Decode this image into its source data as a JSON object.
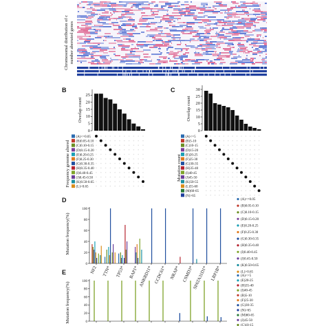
{
  "panel_letters": {
    "b": "B",
    "c": "C",
    "d": "D",
    "e": "E"
  },
  "colors": {
    "heatmap_amp": "#d9467a",
    "heatmap_del": "#2f53c9",
    "track": "#1f3f9e"
  },
  "chart_data": [
    {
      "id": "A",
      "type": "heatmap",
      "ylabel": "Chromosomal distribution of c... number aberrated genes",
      "ylabel_lines": [
        "Chromosomal distribution of c",
        "number aberrated genes"
      ]
    },
    {
      "id": "B",
      "type": "bar",
      "ylabel": "Overlap count",
      "yticks": [
        0,
        5,
        10,
        15,
        20,
        25
      ],
      "ylim": [
        0,
        29
      ],
      "values": [
        26,
        26,
        23,
        22,
        19,
        15,
        12,
        8,
        5,
        3,
        1
      ],
      "matrix_ylabel": "Frequency genome altered",
      "legend": [
        "(A)<=0.05",
        "(B)0.05-0.10",
        "(C)0.10-0.15",
        "(D)0.15-0.20",
        "(E)0.20-0.25",
        "(F)0.25-0.30",
        "(G)0.30-0.35",
        "(H)0.35-0.40",
        "(I)0.40-0.45",
        "(J)0.45-0.50",
        "(K)0.50-0.65",
        "(L)>0.65"
      ],
      "legend_colors": [
        "#2b6cb0",
        "#c0392b",
        "#6b8e23",
        "#7b3f99",
        "#1a9fb5",
        "#e07b1f",
        "#1f4e9e",
        "#b5232f",
        "#7fa32a",
        "#6a3d9a",
        "#1a8fa0",
        "#d98c1a"
      ],
      "dots": [
        [
          1,
          0
        ],
        [
          2,
          1
        ],
        [
          3,
          2
        ],
        [
          4,
          3
        ],
        [
          5,
          4
        ],
        [
          6,
          5
        ],
        [
          7,
          6
        ],
        [
          8,
          7
        ],
        [
          9,
          8
        ],
        [
          10,
          9
        ],
        [
          11,
          10
        ]
      ]
    },
    {
      "id": "C",
      "type": "bar",
      "ylabel": "Overlap count",
      "yticks": [
        0,
        5,
        10,
        15,
        20,
        25,
        30
      ],
      "ylim": [
        0,
        33
      ],
      "values": [
        29,
        27,
        20,
        19,
        18,
        17,
        15,
        11,
        8,
        5,
        3,
        2,
        1
      ],
      "matrix_ylabel": "Mutation count",
      "legend": [
        "(A)<=5",
        "(B)5-10",
        "(C)10-15",
        "(D)15-20",
        "(E)20-25",
        "(F)25-30",
        "(G)30-35",
        "(H)35-40",
        "(I)40-45",
        "(J)45-50",
        "(K)50-55",
        "(L)55-60",
        "(M)60-65",
        "(N)>65"
      ],
      "legend_colors": [
        "#2b6cb0",
        "#c0392b",
        "#6b8e23",
        "#7b3f99",
        "#1a9fb5",
        "#e07b1f",
        "#1f4e9e",
        "#b5232f",
        "#7fa32a",
        "#6a3d9a",
        "#1a8fa0",
        "#d98c1a",
        "#2a7a3a",
        "#1f3f9e"
      ],
      "dots": [
        [
          1,
          0
        ],
        [
          2,
          1
        ],
        [
          3,
          2
        ],
        [
          4,
          3
        ],
        [
          5,
          4
        ],
        [
          6,
          5
        ],
        [
          7,
          6
        ],
        [
          8,
          7
        ],
        [
          9,
          8
        ],
        [
          10,
          9
        ],
        [
          11,
          10
        ],
        [
          12,
          11
        ],
        [
          13,
          12
        ]
      ]
    },
    {
      "id": "D",
      "type": "bar",
      "ylabel": "Mutation frequency(%)",
      "yticks": [
        0,
        20,
        40,
        60,
        80,
        100
      ],
      "ylim": [
        0,
        100
      ],
      "categories": [
        "NF2",
        "TTN*",
        "TP53*",
        "BAP1*",
        "ANKRD11*",
        "CCDC61*",
        "NRAP*",
        "CSMD3*",
        "SPATA31D1*",
        "LRP1B*"
      ],
      "legend": [
        "(A)<=0.05",
        "(B)0.05-0.10",
        "(C)0.10-0.15",
        "(D)0.15-0.20",
        "(E)0.20-0.25",
        "(F)0.25-0.30",
        "(G)0.30-0.35",
        "(H)0.35-0.40",
        "(I)0.40-0.45",
        "(J)0.45-0.50",
        "(K)0.50-0.65",
        "(L)>0.65"
      ],
      "legend_colors": [
        "#2b6cb0",
        "#c0392b",
        "#6b8e23",
        "#7b3f99",
        "#1a9fb5",
        "#e07b1f",
        "#1f4e9e",
        "#b5232f",
        "#7fa32a",
        "#6a3d9a",
        "#1a8fa0",
        "#d98c1a"
      ],
      "series_values": [
        [
          0,
          12,
          18,
          0,
          0,
          0,
          0,
          0,
          0,
          0
        ],
        [
          35,
          0,
          0,
          0,
          0,
          0,
          0,
          0,
          0,
          0
        ],
        [
          30,
          25,
          20,
          0,
          0,
          0,
          0,
          0,
          0,
          0
        ],
        [
          25,
          0,
          10,
          30,
          0,
          0,
          0,
          0,
          0,
          0
        ],
        [
          40,
          30,
          15,
          20,
          0,
          0,
          0,
          0,
          0,
          0
        ],
        [
          20,
          15,
          0,
          35,
          0,
          0,
          0,
          0,
          0,
          0
        ],
        [
          10,
          100,
          10,
          10,
          100,
          100,
          0,
          100,
          100,
          100
        ],
        [
          0,
          0,
          70,
          0,
          0,
          0,
          12,
          0,
          0,
          0
        ],
        [
          18,
          20,
          25,
          45,
          0,
          0,
          0,
          0,
          0,
          0
        ],
        [
          0,
          35,
          40,
          0,
          0,
          0,
          0,
          0,
          0,
          0
        ],
        [
          15,
          0,
          0,
          25,
          0,
          0,
          0,
          8,
          0,
          0
        ],
        [
          32,
          20,
          0,
          0,
          0,
          0,
          0,
          0,
          0,
          0
        ]
      ]
    },
    {
      "id": "E",
      "type": "bar",
      "ylabel": "Mutation frequency(%)",
      "yticks": [
        0,
        20,
        40,
        60,
        80,
        100
      ],
      "ylim": [
        0,
        100
      ],
      "categories": [
        "",
        "",
        "",
        "",
        "",
        "",
        "",
        "",
        "",
        ""
      ],
      "legend": [
        "(A)<=5",
        "(E)20-25",
        "(H)35-40",
        "(I)40-45",
        "(B)5-10",
        "(F)25-30",
        "(G)30-35",
        "(N)>65",
        "(M)60-65",
        "(J)45-50",
        "(C)10-15"
      ],
      "legend_colors": [
        "#2b6cb0",
        "#1a9fb5",
        "#b5232f",
        "#7fa32a",
        "#c0392b",
        "#e07b1f",
        "#1f4e9e",
        "#1f3f9e",
        "#2a7a3a",
        "#6a3d9a",
        "#6b8e23"
      ],
      "series_values": [
        [
          0,
          0,
          0,
          0,
          0,
          0,
          0,
          0,
          0,
          0
        ],
        [
          0,
          0,
          0,
          0,
          0,
          0,
          0,
          0,
          0,
          0
        ],
        [
          0,
          0,
          0,
          0,
          0,
          0,
          0,
          0,
          0,
          0
        ],
        [
          100,
          100,
          100,
          100,
          100,
          100,
          0,
          100,
          100,
          100
        ],
        [
          0,
          0,
          0,
          0,
          0,
          0,
          0,
          0,
          0,
          0
        ],
        [
          0,
          0,
          0,
          0,
          0,
          0,
          0,
          0,
          0,
          0
        ],
        [
          0,
          0,
          0,
          0,
          0,
          0,
          20,
          0,
          12,
          10
        ],
        [
          0,
          0,
          0,
          0,
          0,
          0,
          0,
          0,
          0,
          0
        ],
        [
          0,
          0,
          0,
          0,
          0,
          0,
          0,
          0,
          0,
          0
        ],
        [
          0,
          0,
          0,
          0,
          0,
          0,
          0,
          0,
          0,
          0
        ],
        [
          0,
          0,
          0,
          0,
          0,
          0,
          0,
          0,
          0,
          0
        ]
      ]
    }
  ]
}
